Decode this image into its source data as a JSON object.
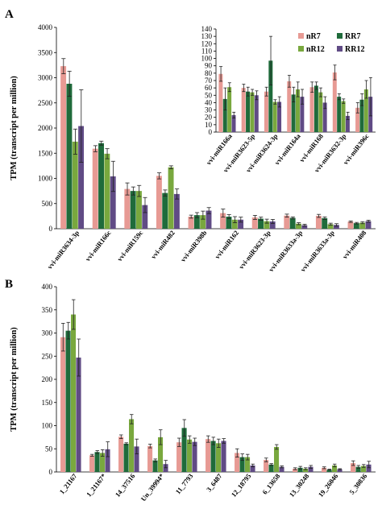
{
  "colors": {
    "nR7": "#e79a94",
    "RR7": "#1f6b3b",
    "nR12": "#79a83e",
    "RR12": "#604b85"
  },
  "chart_data": [
    {
      "panel": "A",
      "type": "bar",
      "ylabel": "TPM (transcript per million)",
      "ylim": [
        0,
        4000
      ],
      "yticks": [
        "0",
        "500",
        "1000",
        "1500",
        "2000",
        "2500",
        "3000",
        "3500",
        "4000"
      ],
      "categories": [
        "vvi-miR3634-3p",
        "vvi-miR166c",
        "vvi-miR159c",
        "vvi-miR482",
        "vvi-miR398b",
        "vvi-miR162",
        "vvi-miR3623-3p",
        "vvi-miR3633a-3p",
        "vvi-miR3633a-3p",
        "vvi-miR408"
      ],
      "series": [
        {
          "name": "nR7",
          "values": [
            3230,
            1590,
            790,
            1050,
            240,
            310,
            225,
            260,
            255,
            140
          ],
          "errors": [
            150,
            60,
            120,
            60,
            30,
            80,
            40,
            30,
            30,
            15
          ]
        },
        {
          "name": "RR7",
          "values": [
            2880,
            1700,
            750,
            710,
            270,
            240,
            200,
            215,
            210,
            110
          ],
          "errors": [
            250,
            40,
            80,
            60,
            50,
            40,
            30,
            20,
            25,
            15
          ]
        },
        {
          "name": "nR12",
          "values": [
            1730,
            1490,
            750,
            1220,
            270,
            180,
            150,
            100,
            90,
            120
          ],
          "errors": [
            250,
            100,
            110,
            30,
            80,
            60,
            40,
            20,
            20,
            20
          ]
        },
        {
          "name": "RR12",
          "values": [
            2040,
            1040,
            470,
            690,
            360,
            180,
            145,
            70,
            75,
            150
          ],
          "errors": [
            720,
            300,
            150,
            100,
            60,
            50,
            40,
            20,
            25,
            20
          ]
        }
      ]
    },
    {
      "panel": "A-inset",
      "type": "bar",
      "ylim": [
        0,
        140
      ],
      "yticks": [
        "0",
        "10",
        "20",
        "30",
        "40",
        "50",
        "60",
        "70",
        "80",
        "90",
        "100",
        "110",
        "120",
        "130",
        "140"
      ],
      "categories": [
        "vvi-miR166a",
        "vvi-miR3623-5p",
        "vvi-miR3624-3p",
        "vvi-miR164a",
        "vvi-miR168",
        "vvi-miR3632-3p",
        "vvi-miR396c"
      ],
      "legend": [
        "nR7",
        "RR7",
        "nR12",
        "RR12"
      ],
      "legend_position": "top-right",
      "series": [
        {
          "name": "nR7",
          "values": [
            79,
            60,
            55,
            69,
            61,
            81,
            33
          ],
          "errors": [
            10,
            5,
            6,
            8,
            7,
            10,
            7
          ]
        },
        {
          "name": "RR7",
          "values": [
            45,
            55,
            97,
            51,
            63,
            48,
            44
          ],
          "errors": [
            15,
            6,
            33,
            10,
            5,
            4,
            8
          ]
        },
        {
          "name": "nR12",
          "values": [
            61,
            54,
            41,
            58,
            54,
            42,
            58
          ],
          "errors": [
            6,
            4,
            3,
            10,
            6,
            3,
            12
          ]
        },
        {
          "name": "RR12",
          "values": [
            23,
            50,
            41,
            48,
            40,
            22,
            48
          ],
          "errors": [
            4,
            6,
            7,
            10,
            8,
            5,
            26
          ]
        }
      ]
    },
    {
      "panel": "B",
      "type": "bar",
      "ylabel": "TPM (transcript per million)",
      "ylim": [
        0,
        400
      ],
      "yticks": [
        "0",
        "50",
        "100",
        "150",
        "200",
        "250",
        "300",
        "350",
        "400"
      ],
      "categories": [
        "1_21167",
        "1_21167*",
        "14_37516",
        "Un_39994*",
        "11_7793",
        "3_6487",
        "12_18795",
        "6_13658",
        "13_30248",
        "19_26046",
        "5_30836"
      ],
      "series": [
        {
          "name": "nR7",
          "values": [
            291,
            36,
            76,
            56,
            64,
            71,
            41,
            26,
            7,
            9,
            19
          ],
          "errors": [
            30,
            2,
            4,
            4,
            9,
            7,
            9,
            4,
            2,
            2,
            5
          ]
        },
        {
          "name": "RR7",
          "values": [
            305,
            43,
            61,
            25,
            95,
            67,
            32,
            16,
            9,
            5,
            11
          ],
          "errors": [
            18,
            3,
            2,
            3,
            18,
            8,
            7,
            2,
            3,
            1,
            3
          ]
        },
        {
          "name": "nR12",
          "values": [
            340,
            41,
            114,
            75,
            70,
            62,
            32,
            54,
            7,
            14,
            13
          ],
          "errors": [
            32,
            7,
            10,
            16,
            8,
            9,
            6,
            5,
            2,
            3,
            3
          ]
        },
        {
          "name": "RR12",
          "values": [
            247,
            49,
            55,
            17,
            65,
            67,
            14,
            11,
            11,
            6,
            16
          ],
          "errors": [
            40,
            16,
            16,
            8,
            8,
            5,
            3,
            2,
            3,
            1,
            7
          ]
        }
      ]
    }
  ],
  "panel_letters": [
    "A",
    "B"
  ]
}
